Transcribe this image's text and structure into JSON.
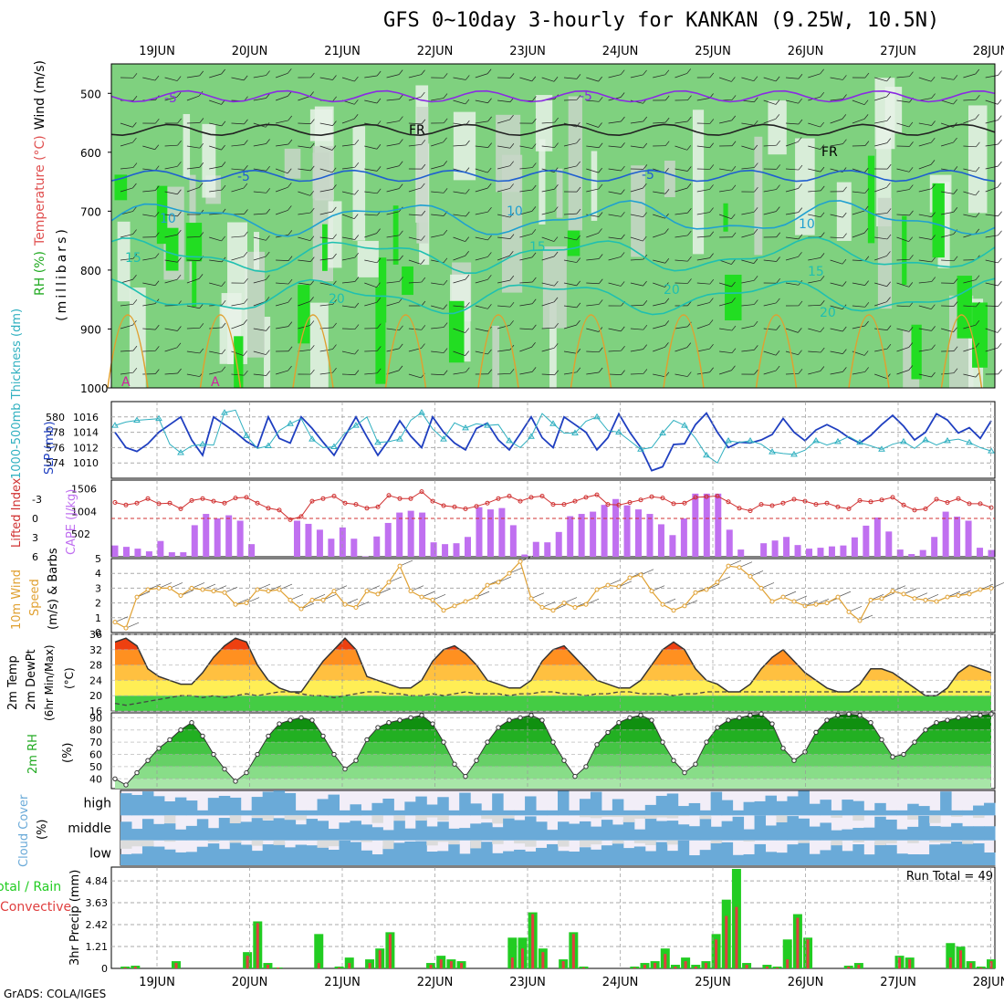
{
  "title": "GFS 0~10day 3-hourly for KANKAN (9.25W, 10.5N)",
  "footer": "GrADS: COLA/IGES",
  "colors": {
    "rh_light": "#e8f2e8",
    "rh_grey": "#c8d6c8",
    "rh_green": "#7fd17f",
    "rh_bright": "#22dd22",
    "temp_purple": "#8a2be2",
    "temp_blue": "#1f5fd0",
    "temp_cyan": "#1fa0d0",
    "temp_teal": "#1fc0b0",
    "slp": "#1f3fc0",
    "thickness": "#30b0c0",
    "lifted": "#d03030",
    "cape": "#c070f0",
    "wind10": "#e0a030",
    "cloud": "#6aaad8",
    "rain_total": "#22cc22",
    "rain_conv": "#e04040"
  },
  "chart_data": [
    {
      "type": "heatmap",
      "panel": "upper-air",
      "ylabel_parts": [
        "RH (%)",
        "Temperature (°C)",
        "Wind (m/s)"
      ],
      "ylabel_sub": "(millibars)",
      "yticks": [
        500,
        600,
        700,
        800,
        900,
        1000
      ],
      "ylim": [
        1000,
        450
      ],
      "xlabels": [
        "19JUN",
        "20JUN",
        "21JUN",
        "22JUN",
        "23JUN",
        "24JUN",
        "25JUN",
        "26JUN",
        "27JUN",
        "28JUN"
      ],
      "contour_labels": [
        "-5",
        "-5",
        "FR",
        "FR",
        "-5",
        "-5",
        "10",
        "10",
        "10",
        "15",
        "15",
        "15",
        "20",
        "20",
        "20"
      ],
      "isotherms": [
        {
          "label": "-5",
          "level": 505
        },
        {
          "label": "FR",
          "level": 562
        },
        {
          "label": "-5",
          "level": 640
        },
        {
          "label": "10",
          "level": 712
        },
        {
          "label": "15",
          "level": 775
        },
        {
          "label": "20",
          "level": 845
        }
      ]
    },
    {
      "type": "line",
      "panel": "slp-thickness",
      "ylabel_left": "1000-500mb Thickness (dm)",
      "ylabel_right": "SLP (mb)",
      "left_ticks": [
        574,
        576,
        578,
        580
      ],
      "right_ticks": [
        1010,
        1012,
        1014,
        1016
      ],
      "ylim_slp": [
        1008,
        1018
      ],
      "slp": [
        1014,
        1012,
        1011.5,
        1012.5,
        1014,
        1015,
        1016,
        1013,
        1011,
        1016,
        1015,
        1014,
        1012.8,
        1012,
        1016,
        1013.2,
        1012.6,
        1016,
        1014.5,
        1012.7,
        1011,
        1013.5,
        1016,
        1013.4,
        1011,
        1013,
        1015.5,
        1013.5,
        1012,
        1016,
        1014,
        1012.6,
        1011.7,
        1014.5,
        1015.2,
        1013,
        1011.7,
        1013.8,
        1016,
        1013.3,
        1012,
        1016,
        1015,
        1014,
        1011.7,
        1013.3,
        1016.4,
        1014,
        1012,
        1009,
        1009.5,
        1012.4,
        1012.5,
        1015,
        1016.5,
        1014,
        1012,
        1012.7,
        1012.6,
        1013,
        1013.7,
        1015.8,
        1014,
        1012.9,
        1014.3,
        1015,
        1014.3,
        1013.3,
        1012.6,
        1013.6,
        1015,
        1016.2,
        1014.8,
        1013,
        1014,
        1016.4,
        1015.6,
        1013.9,
        1014.6,
        1013.2,
        1015.5
      ],
      "thickness": [
        579.2,
        579.6,
        579.8,
        579.9,
        580,
        577,
        576,
        576.8,
        577,
        576.9,
        580.7,
        581,
        578,
        576.5,
        576.8,
        578.6,
        579.4,
        580,
        577.6,
        576.6,
        576.7,
        578.3,
        579.2,
        580.2,
        577.2,
        577.3,
        577.6,
        579.8,
        580.7,
        578.8,
        577.6,
        579.5,
        578.9,
        579.4,
        579.2,
        579.3,
        577.4,
        576.6,
        577.9,
        580.6,
        579.4,
        578.3,
        578.3,
        579.7,
        580.2,
        578.6,
        578.4,
        577.4,
        576.4,
        576.6,
        578.3,
        579.8,
        579.2,
        577.7,
        575.7,
        574.8,
        577.4,
        577.2,
        577.4,
        577,
        576.1,
        575.9,
        575.8,
        576.3,
        577.4,
        576.9,
        577.3,
        577.9,
        577.2,
        576.8,
        576.4,
        577,
        577.3,
        576.5,
        577.5,
        576.9,
        577.4,
        577.6,
        577.2,
        576.6,
        576.2
      ]
    },
    {
      "type": "bar",
      "panel": "lifted-cape",
      "ylabel_left": "Lifted Index",
      "ylabel_right": "CAPE (J/kg)",
      "left_ticks": [
        -3,
        0,
        3,
        6
      ],
      "right_ticks": [
        502,
        1004,
        1506
      ],
      "cape_values": [
        250,
        220,
        180,
        120,
        350,
        100,
        100,
        700,
        950,
        850,
        920,
        800,
        280,
        0,
        0,
        0,
        800,
        730,
        600,
        400,
        650,
        400,
        10,
        450,
        750,
        980,
        1020,
        980,
        320,
        280,
        300,
        440,
        1100,
        1050,
        1080,
        700,
        50,
        330,
        320,
        550,
        900,
        950,
        1000,
        1150,
        1280,
        1140,
        1050,
        950,
        720,
        480,
        850,
        1400,
        1400,
        1400,
        600,
        160,
        0,
        300,
        360,
        440,
        260,
        180,
        200,
        230,
        250,
        430,
        690,
        870,
        560,
        160,
        60,
        150,
        440,
        1000,
        890,
        800,
        200,
        150
      ],
      "lifted_values": [
        -2.5,
        -2.1,
        -2.4,
        -3.1,
        -2.3,
        -2.4,
        -1.5,
        -2.8,
        -3.1,
        -2.7,
        -2.4,
        -3.2,
        -3.3,
        -2.4,
        -1.6,
        -1.3,
        0.2,
        -0.3,
        -2.7,
        -3.1,
        -3.5,
        -2.4,
        -2.2,
        -1.6,
        -1.8,
        -3.6,
        -3.1,
        -3.1,
        -4.2,
        -2.7,
        -2.0,
        -1.8,
        -1.5,
        -1.9,
        -2.4,
        -3.1,
        -3.5,
        -2.7,
        -3.3,
        -3.5,
        -2.2,
        -2.2,
        -2.7,
        -3.3,
        -3.7,
        -2.2,
        -2.1,
        -2.5,
        -2.9,
        -3.4,
        -3.2,
        -2.3,
        -2.4,
        -3.3,
        -3.4,
        -3.5,
        -2.6,
        -1.6,
        -1.2,
        -2.2,
        -2.0,
        -2.4,
        -3.0,
        -2.7,
        -2.2,
        -2.4,
        -1.8,
        -1.5,
        -2.8,
        -2.6,
        -2.9,
        -3.3,
        -2.1,
        -1.3,
        -1.5,
        -3.0,
        -2.5,
        -3.1,
        -2.3,
        -2.3,
        -1.7
      ]
    },
    {
      "type": "line",
      "panel": "wind10m",
      "ylabel_parts": [
        "10m Wind",
        "Speed",
        "(m/s) & Barbs"
      ],
      "yticks": [
        0,
        1,
        2,
        3,
        4,
        5
      ],
      "ylim": [
        0,
        5
      ],
      "values": [
        0.7,
        0.3,
        2.4,
        2.9,
        3.0,
        3.0,
        2.5,
        3.0,
        2.9,
        2.8,
        2.7,
        1.9,
        2.0,
        2.9,
        2.8,
        2.9,
        2.2,
        1.6,
        2.2,
        2.2,
        2.8,
        1.9,
        1.7,
        2.8,
        2.6,
        3.4,
        4.5,
        2.8,
        2.4,
        2.2,
        1.5,
        1.8,
        2.1,
        2.4,
        3.2,
        3.4,
        4.0,
        4.8,
        2.3,
        1.7,
        1.5,
        2.0,
        1.7,
        1.9,
        2.9,
        3.2,
        3.1,
        3.7,
        3.9,
        2.8,
        1.9,
        1.5,
        1.8,
        2.7,
        2.9,
        3.4,
        4.5,
        4.4,
        3.8,
        3.0,
        2.1,
        2.4,
        2.1,
        1.8,
        1.9,
        2.0,
        2.4,
        1.4,
        0.8,
        2.2,
        2.3,
        2.8,
        2.6,
        2.3,
        2.2,
        2.1,
        2.4,
        2.5,
        2.6,
        2.9,
        3.0
      ]
    },
    {
      "type": "area",
      "panel": "temp2m",
      "ylabel_parts": [
        "2m Temp",
        "2m DewPt",
        "(6hr Min/Max)",
        "(°C)"
      ],
      "yticks": [
        16,
        20,
        24,
        28,
        32,
        36
      ],
      "ylim": [
        16,
        36
      ],
      "temp_values": [
        34,
        35,
        33,
        27,
        25,
        24,
        23,
        23,
        26,
        30,
        33,
        35,
        34,
        28,
        24,
        22,
        21,
        21,
        25,
        29,
        32,
        35,
        32,
        25,
        24,
        23,
        22,
        22,
        24,
        29,
        32,
        33,
        31,
        28,
        24,
        23,
        22,
        22,
        24,
        29,
        32,
        33,
        30,
        27,
        24,
        23,
        22,
        22,
        24,
        28,
        32,
        34,
        32,
        27,
        24,
        23,
        21,
        21,
        23,
        27,
        30,
        32,
        29,
        26,
        24,
        22,
        21,
        21,
        23,
        27,
        27,
        26,
        24,
        22,
        20,
        20,
        22,
        26,
        28,
        27,
        26
      ],
      "dew_values": [
        18,
        17.5,
        18,
        18.5,
        19,
        19.5,
        20,
        20,
        19.5,
        20,
        19.5,
        20,
        20.5,
        20,
        20.5,
        21,
        21,
        20.5,
        20,
        20,
        19.5,
        20,
        20.5,
        21,
        21,
        20.5,
        20.5,
        20,
        20,
        20.5,
        20,
        20.5,
        21,
        20.5,
        20.5,
        20.5,
        20,
        20.5,
        20.5,
        21,
        21,
        20.5,
        20.5,
        20,
        20.5,
        20.5,
        21,
        21,
        20.5,
        20.5,
        20.5,
        20,
        20.5,
        20.5,
        21,
        21,
        21,
        21,
        21,
        21,
        21,
        21,
        21,
        21,
        21,
        21,
        21,
        21,
        21,
        21,
        21,
        21,
        21,
        21,
        21,
        21,
        21,
        21,
        21,
        21,
        21
      ]
    },
    {
      "type": "area",
      "panel": "rh2m",
      "ylabel_parts": [
        "2m RH",
        "(%)"
      ],
      "yticks": [
        40,
        50,
        60,
        70,
        80,
        90
      ],
      "ylim": [
        32,
        94
      ],
      "values": [
        40,
        35,
        45,
        55,
        65,
        72,
        80,
        86,
        75,
        60,
        48,
        38,
        45,
        60,
        75,
        85,
        88,
        90,
        88,
        75,
        60,
        48,
        55,
        72,
        82,
        86,
        88,
        90,
        92,
        85,
        70,
        52,
        42,
        55,
        70,
        82,
        88,
        90,
        92,
        88,
        70,
        55,
        42,
        50,
        68,
        78,
        86,
        90,
        92,
        88,
        70,
        55,
        45,
        52,
        70,
        82,
        88,
        90,
        92,
        93,
        85,
        65,
        55,
        62,
        78,
        88,
        92,
        93,
        92,
        86,
        72,
        58,
        60,
        70,
        80,
        86,
        88,
        90,
        91,
        92,
        93
      ]
    },
    {
      "type": "heatmap",
      "panel": "cloud",
      "ylabel_parts": [
        "Cloud Cover",
        "(%)"
      ],
      "rows": [
        "high",
        "middle",
        "low"
      ]
    },
    {
      "type": "bar",
      "panel": "precip",
      "ylabel_parts": [
        "Total / Rain",
        "Convective",
        "3hr Precip (mm)"
      ],
      "annotation": "Run Total = 49",
      "yticks": [
        0,
        1.21,
        2.42,
        3.63,
        4.84
      ],
      "ytick_labels": [
        "0",
        "1.21",
        "2.42",
        "3.63",
        "4.84"
      ],
      "ylim": [
        0,
        5.6
      ],
      "total_values": [
        0,
        0.1,
        0.15,
        0,
        0,
        0,
        0.4,
        0,
        0,
        0,
        0,
        0,
        0,
        0.9,
        2.6,
        0.3,
        0.05,
        0,
        0,
        0,
        1.9,
        0,
        0.1,
        0.6,
        0,
        0.5,
        1.1,
        2.0,
        0,
        0,
        0,
        0.3,
        0.7,
        0.5,
        0.4,
        0,
        0,
        0,
        0,
        1.7,
        1.7,
        3.1,
        1.1,
        0,
        0.5,
        2.0,
        0.1,
        0,
        0,
        0,
        0,
        0.1,
        0.3,
        0.4,
        1.1,
        0.2,
        0.6,
        0.2,
        0.4,
        1.9,
        3.8,
        5.5,
        0.3,
        0,
        0.2,
        0.1,
        1.6,
        3.0,
        1.7,
        0,
        0,
        0,
        0.15,
        0.3,
        0,
        0,
        0,
        0.7,
        0.6,
        0,
        0,
        0,
        1.4,
        1.2,
        0.4,
        0.1,
        0.5
      ],
      "conv_values": [
        0,
        0.05,
        0.1,
        0,
        0,
        0,
        0.3,
        0,
        0,
        0,
        0,
        0,
        0,
        0.7,
        2.5,
        0.2,
        0.05,
        0,
        0,
        0,
        0.3,
        0,
        0.05,
        0.3,
        0,
        0.3,
        1.0,
        1.9,
        0,
        0,
        0,
        0.2,
        0.5,
        0.4,
        0.3,
        0,
        0,
        0,
        0,
        0.6,
        1.1,
        3.0,
        0.9,
        0,
        0.4,
        1.9,
        0.05,
        0,
        0,
        0,
        0,
        0.05,
        0.2,
        0.3,
        0.8,
        0.1,
        0.4,
        0.1,
        0.3,
        1.6,
        2.9,
        3.4,
        0.2,
        0,
        0.1,
        0.05,
        0.5,
        2.8,
        1.6,
        0,
        0,
        0,
        0.1,
        0.2,
        0,
        0,
        0,
        0.6,
        0.5,
        0,
        0,
        0,
        0.6,
        1.0,
        0.3,
        0.05,
        0.4
      ]
    }
  ]
}
